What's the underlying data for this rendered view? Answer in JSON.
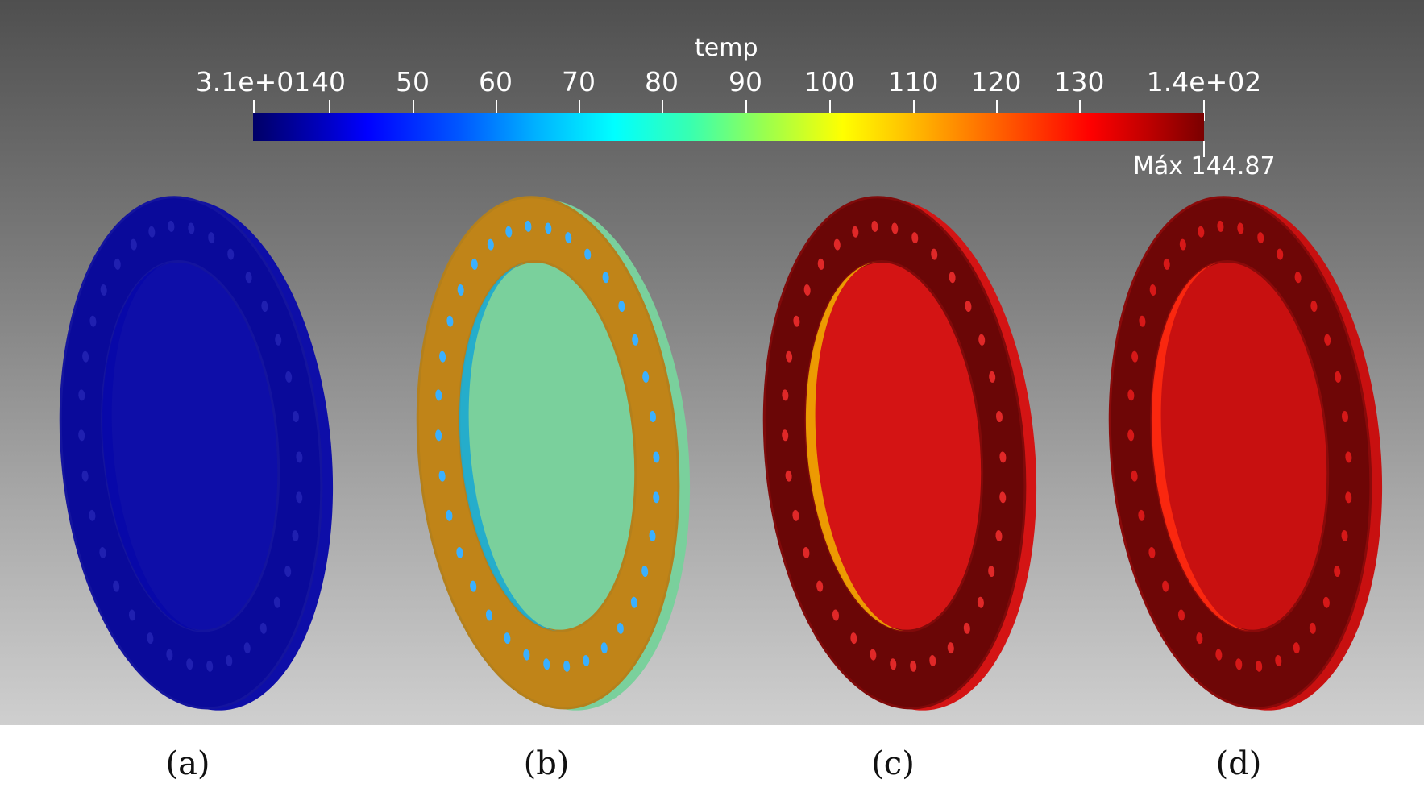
{
  "colorbar": {
    "title": "temp",
    "ticks": [
      "3.1e+01",
      "40",
      "50",
      "60",
      "70",
      "80",
      "90",
      "100",
      "110",
      "120",
      "130",
      "1.4e+02"
    ],
    "max_label": "Máx 144.87"
  },
  "panels": [
    {
      "caption": "(a)",
      "face": "#0a0a9a",
      "edge": "#14149e",
      "rim": "#0e0ea8",
      "hole": "#2020b0",
      "inner": "#0808a8"
    },
    {
      "caption": "(b)",
      "face": "#c08418",
      "edge": "#b4801c",
      "rim": "#7ad09c",
      "hole": "#3ab0ff",
      "inner": "#1ca8d0"
    },
    {
      "caption": "(c)",
      "face": "#6a0606",
      "edge": "#800a0a",
      "rim": "#d41414",
      "hole": "#e02828",
      "inner": "#f0a800"
    },
    {
      "caption": "(d)",
      "face": "#6e0606",
      "edge": "#8a0a0a",
      "rim": "#c81010",
      "hole": "#d61818",
      "inner": "#ff2a10"
    }
  ]
}
